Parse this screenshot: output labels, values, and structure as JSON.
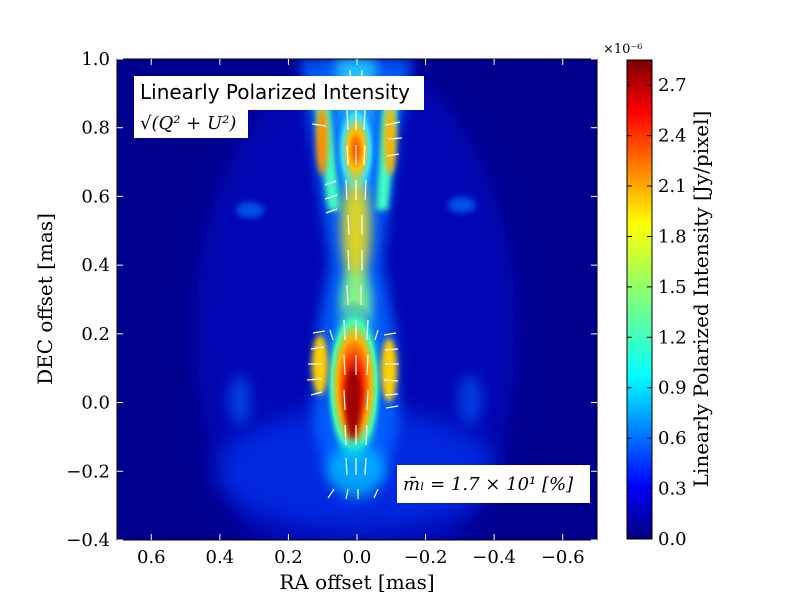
{
  "chart_data": {
    "type": "heatmap",
    "title": "Linearly Polarized Intensity",
    "subtitle": "√(Q² + U²)",
    "xlabel": "RA offset [mas]",
    "ylabel": "DEC offset [mas]",
    "xlim": [
      0.7,
      -0.7
    ],
    "ylim": [
      -0.4,
      1.0
    ],
    "x_ticks": [
      "0.6",
      "0.4",
      "0.2",
      "0.0",
      "−0.2",
      "−0.4",
      "−0.6"
    ],
    "x_tick_values": [
      0.6,
      0.4,
      0.2,
      0.0,
      -0.2,
      -0.4,
      -0.6
    ],
    "y_ticks": [
      "1.0",
      "0.8",
      "0.6",
      "0.4",
      "0.2",
      "0.0",
      "−0.2",
      "−0.4"
    ],
    "y_tick_values": [
      1.0,
      0.8,
      0.6,
      0.4,
      0.2,
      0.0,
      -0.2,
      -0.4
    ],
    "colormap": "jet",
    "colorbar": {
      "label": "Linearly Polarized Intensity [Jy/pixel]",
      "multiplier": "×10⁻⁶",
      "range": [
        0.0,
        2.85
      ],
      "ticks": [
        "0.0",
        "0.3",
        "0.6",
        "0.9",
        "1.2",
        "1.5",
        "1.8",
        "2.1",
        "2.4",
        "2.7"
      ],
      "tick_values": [
        0.0,
        0.3,
        0.6,
        0.9,
        1.2,
        1.5,
        1.8,
        2.1,
        2.4,
        2.7
      ]
    },
    "annotation": "m̄ₗ = 1.7 × 10¹ [%]",
    "peak_value": 2.85,
    "peak_location": [
      0.0,
      -0.05
    ]
  }
}
